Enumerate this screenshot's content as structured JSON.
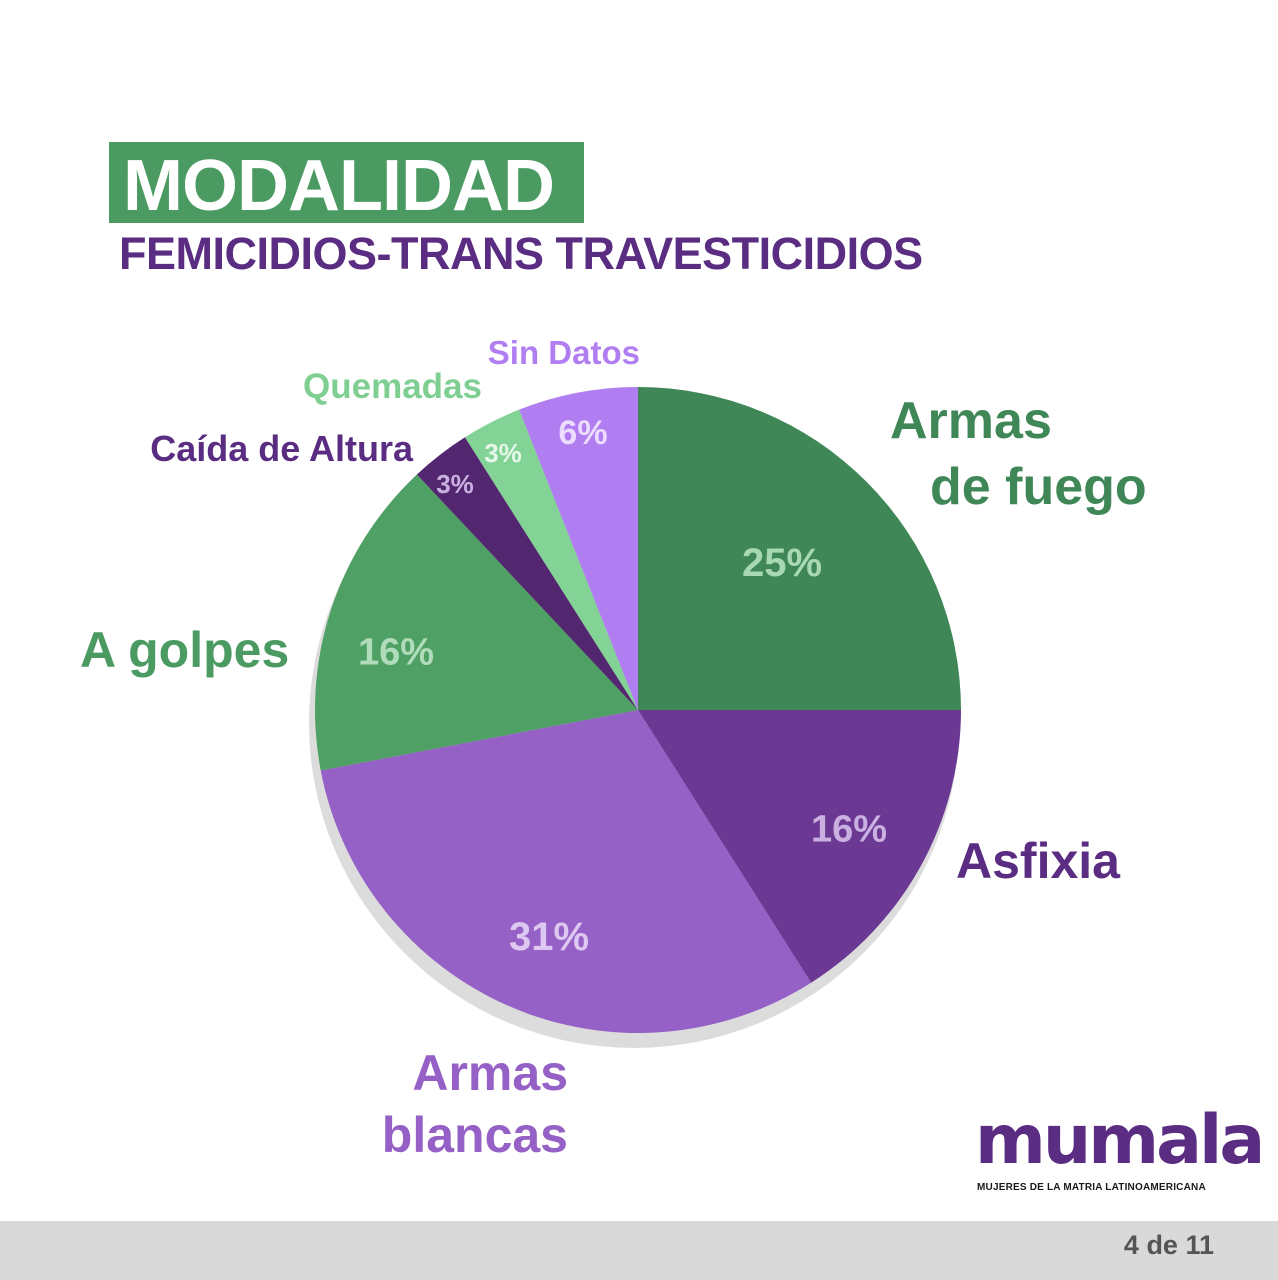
{
  "title": "MODALIDAD",
  "subtitle": "FEMICIDIOS-TRANS TRAVESTICIDIOS",
  "chart_data": {
    "type": "pie",
    "start": "top, clockwise",
    "slices": [
      {
        "name_lines": [
          "Armas",
          "de fuego"
        ],
        "value": 25,
        "label": "25%",
        "color": "#3f8757",
        "pct_color": "#a8d8b4",
        "name_color": "#3f8757"
      },
      {
        "name_lines": [
          "Asfixia"
        ],
        "value": 16,
        "label": "16%",
        "color": "#6b3893",
        "pct_color": "#c9b0e0",
        "name_color": "#5a2d82"
      },
      {
        "name_lines": [
          "Armas",
          "blancas"
        ],
        "value": 31,
        "label": "31%",
        "color": "#9661c6",
        "pct_color": "#dcc8f0",
        "name_color": "#9661c6"
      },
      {
        "name_lines": [
          "A golpes"
        ],
        "value": 16,
        "label": "16%",
        "color": "#4fa064",
        "pct_color": "#b0dcbb",
        "name_color": "#4a9a62"
      },
      {
        "name_lines": [
          "Caída de Altura"
        ],
        "value": 3,
        "label": "3%",
        "color": "#52276f",
        "pct_color": "#c9b0e0",
        "name_color": "#5a2d82"
      },
      {
        "name_lines": [
          "Quemadas"
        ],
        "value": 3,
        "label": "3%",
        "color": "#83d296",
        "pct_color": "#e6f7ea",
        "name_color": "#7fcf92"
      },
      {
        "name_lines": [
          "Sin Datos"
        ],
        "value": 6,
        "label": "6%",
        "color": "#b07ef0",
        "pct_color": "#ecdcff",
        "name_color": "#b07ef0"
      }
    ]
  },
  "logo": {
    "word": "mumala",
    "tagline": "MUJERES DE LA MATRIA LATINOAMERICANA",
    "color": "#5a2d82"
  },
  "footer": {
    "page": "4 de 11"
  }
}
